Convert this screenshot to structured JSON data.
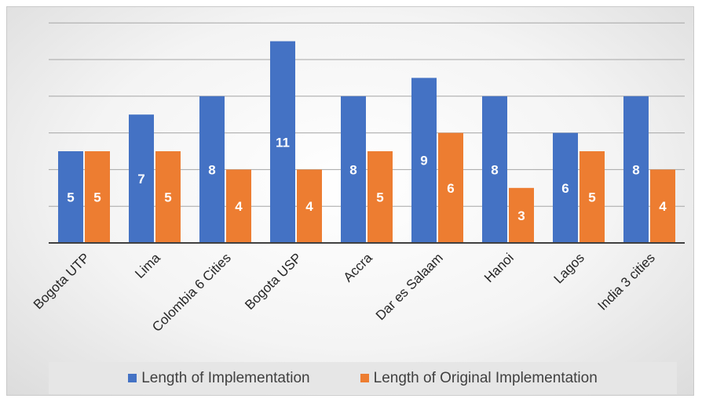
{
  "chart_data": {
    "type": "bar",
    "title": "",
    "xlabel": "",
    "ylabel": "",
    "ylim": [
      0,
      12
    ],
    "grid": true,
    "legend_position": "bottom",
    "categories": [
      "Bogota UTP",
      "Lima",
      "Colombia 6 Cities",
      "Bogota USP",
      "Accra",
      "Dar es Salaam",
      "Hanoi",
      "Lagos",
      "India 3 cities"
    ],
    "series": [
      {
        "name": "Length of Implementation",
        "color": "#4472C4",
        "values": [
          5,
          7,
          8,
          11,
          8,
          9,
          8,
          6,
          8
        ]
      },
      {
        "name": "Length of Original Implementation",
        "color": "#ED7D31",
        "values": [
          5,
          5,
          4,
          4,
          5,
          6,
          3,
          5,
          4
        ]
      }
    ]
  }
}
